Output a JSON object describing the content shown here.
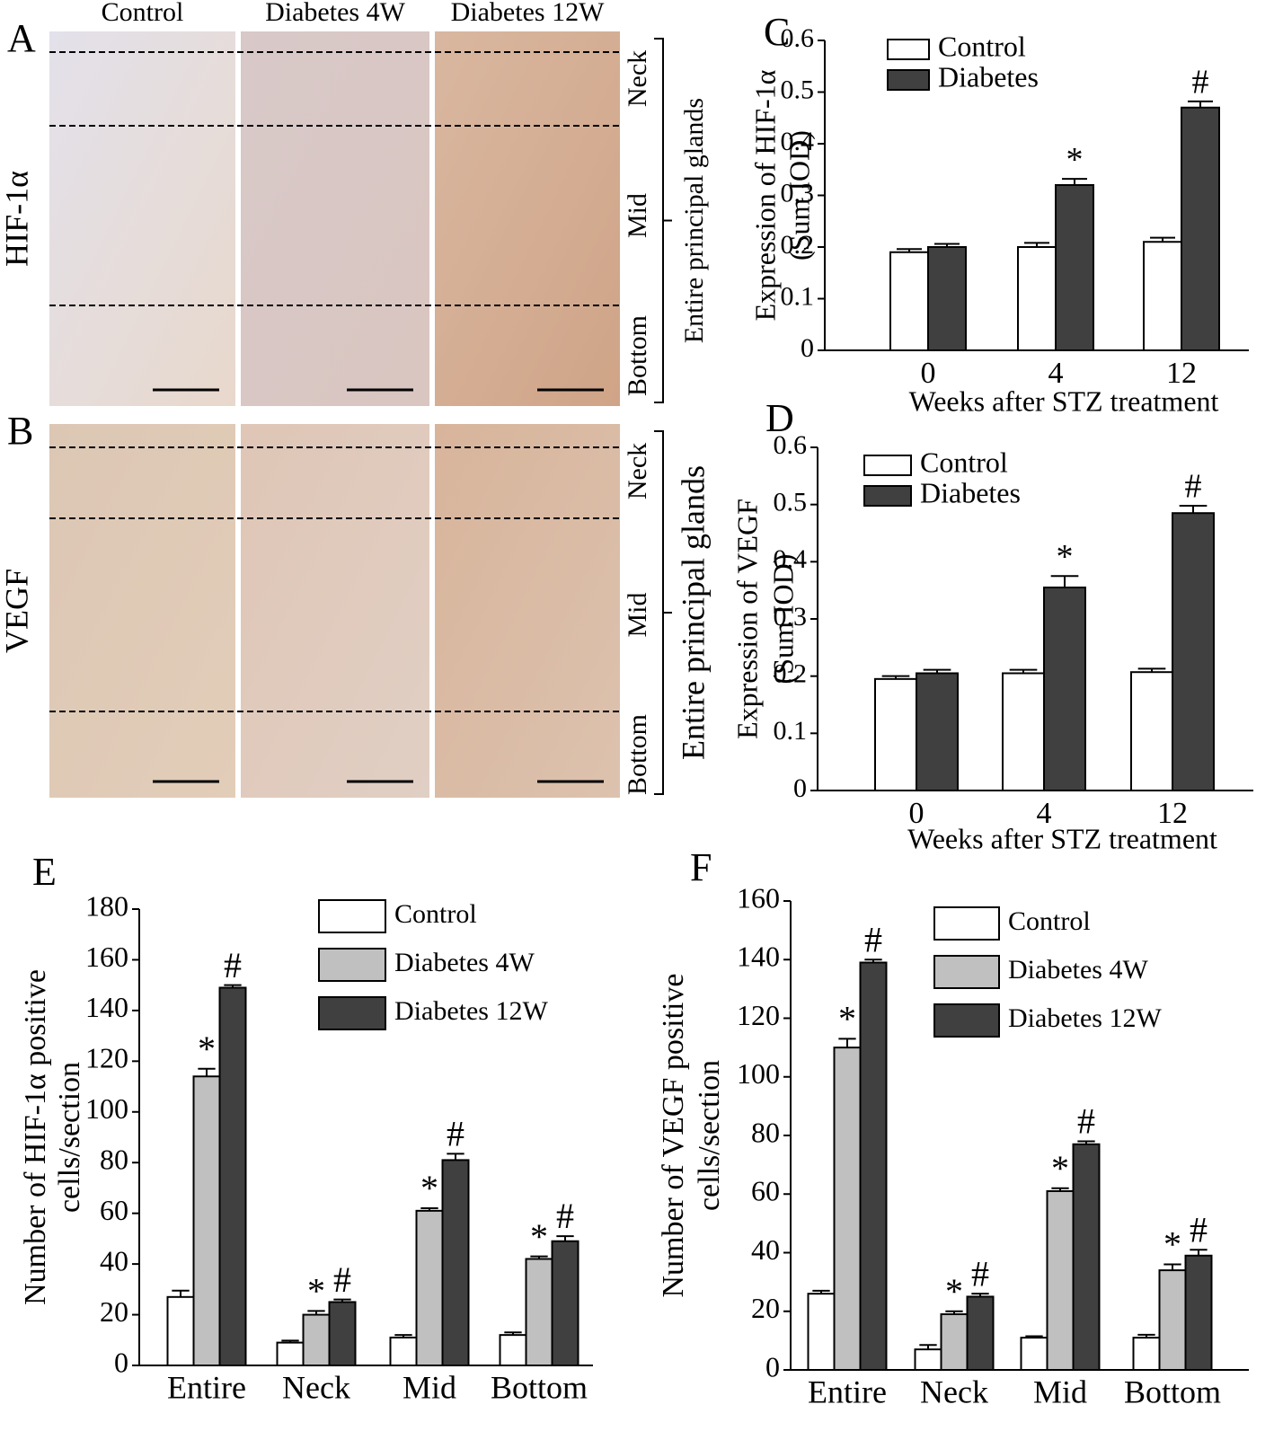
{
  "micrographs": {
    "columns": [
      "Control",
      "Diabetes 4W",
      "Diabetes 12W"
    ],
    "rows": [
      {
        "panel": "A",
        "label": "HIF-1α"
      },
      {
        "panel": "B",
        "label": "VEGF"
      }
    ],
    "regions": [
      "Neck",
      "Mid",
      "Bottom"
    ],
    "bracket_label": "Entire principal glands"
  },
  "chart_data": [
    {
      "type": "bar",
      "panel": "C",
      "ylabel": [
        "Expression of HIF-1α",
        "(Sum IOD)"
      ],
      "xlabel": "Weeks after STZ treatment",
      "categories": [
        "0",
        "4",
        "12"
      ],
      "ylim": [
        0,
        0.6
      ],
      "yticks": [
        0,
        0.1,
        0.2,
        0.3,
        0.4,
        0.5,
        0.6
      ],
      "series": [
        {
          "name": "Control",
          "color": "#ffffff",
          "values": [
            0.19,
            0.2,
            0.21
          ],
          "errors": [
            0.006,
            0.008,
            0.008
          ]
        },
        {
          "name": "Diabetes",
          "color": "#404040",
          "values": [
            0.2,
            0.32,
            0.47
          ],
          "errors": [
            0.006,
            0.012,
            0.012
          ],
          "markers": [
            null,
            "*",
            "#"
          ]
        }
      ]
    },
    {
      "type": "bar",
      "panel": "D",
      "ylabel": [
        "Expression of VEGF",
        "(Sum IOD)"
      ],
      "xlabel": "Weeks after STZ treatment",
      "categories": [
        "0",
        "4",
        "12"
      ],
      "ylim": [
        0,
        0.6
      ],
      "yticks": [
        0,
        0.1,
        0.2,
        0.3,
        0.4,
        0.5,
        0.6
      ],
      "series": [
        {
          "name": "Control",
          "color": "#ffffff",
          "values": [
            0.195,
            0.205,
            0.207
          ],
          "errors": [
            0.005,
            0.006,
            0.006
          ]
        },
        {
          "name": "Diabetes",
          "color": "#404040",
          "values": [
            0.205,
            0.355,
            0.485
          ],
          "errors": [
            0.006,
            0.02,
            0.013
          ],
          "markers": [
            null,
            "*",
            "#"
          ]
        }
      ]
    },
    {
      "type": "bar",
      "panel": "E",
      "ylabel": [
        "Number of HIF-1α positive",
        "cells/section"
      ],
      "categories": [
        "Entire",
        "Neck",
        "Mid",
        "Bottom"
      ],
      "ylim": [
        0,
        180
      ],
      "yticks": [
        0,
        20,
        40,
        60,
        80,
        100,
        120,
        140,
        160,
        180
      ],
      "series": [
        {
          "name": "Control",
          "color": "#ffffff",
          "values": [
            27,
            9,
            11,
            12
          ],
          "errors": [
            2.5,
            0.8,
            1,
            1
          ]
        },
        {
          "name": "Diabetes 4W",
          "color": "#c0c0c0",
          "values": [
            114,
            20,
            61,
            42
          ],
          "errors": [
            3,
            1.5,
            1,
            1
          ],
          "markers": [
            "*",
            "*",
            "*",
            "*"
          ]
        },
        {
          "name": "Diabetes 12W",
          "color": "#404040",
          "values": [
            149,
            25,
            81,
            49
          ],
          "errors": [
            1,
            1,
            2.5,
            2
          ],
          "markers": [
            "#",
            "#",
            "#",
            "#"
          ]
        }
      ]
    },
    {
      "type": "bar",
      "panel": "F",
      "ylabel": [
        "Number of VEGF positive",
        "cells/section"
      ],
      "categories": [
        "Entire",
        "Neck",
        "Mid",
        "Bottom"
      ],
      "ylim": [
        0,
        160
      ],
      "yticks": [
        0,
        20,
        40,
        60,
        80,
        100,
        120,
        140,
        160
      ],
      "series": [
        {
          "name": "Control",
          "color": "#ffffff",
          "values": [
            26,
            7,
            11,
            11
          ],
          "errors": [
            1,
            1.5,
            0.5,
            1
          ]
        },
        {
          "name": "Diabetes 4W",
          "color": "#c0c0c0",
          "values": [
            110,
            19,
            61,
            34
          ],
          "errors": [
            3,
            1,
            1,
            2
          ],
          "markers": [
            "*",
            "*",
            "*",
            "*"
          ]
        },
        {
          "name": "Diabetes 12W",
          "color": "#404040",
          "values": [
            139,
            25,
            77,
            39
          ],
          "errors": [
            1,
            1,
            1,
            2
          ],
          "markers": [
            "#",
            "#",
            "#",
            "#"
          ]
        }
      ]
    }
  ]
}
